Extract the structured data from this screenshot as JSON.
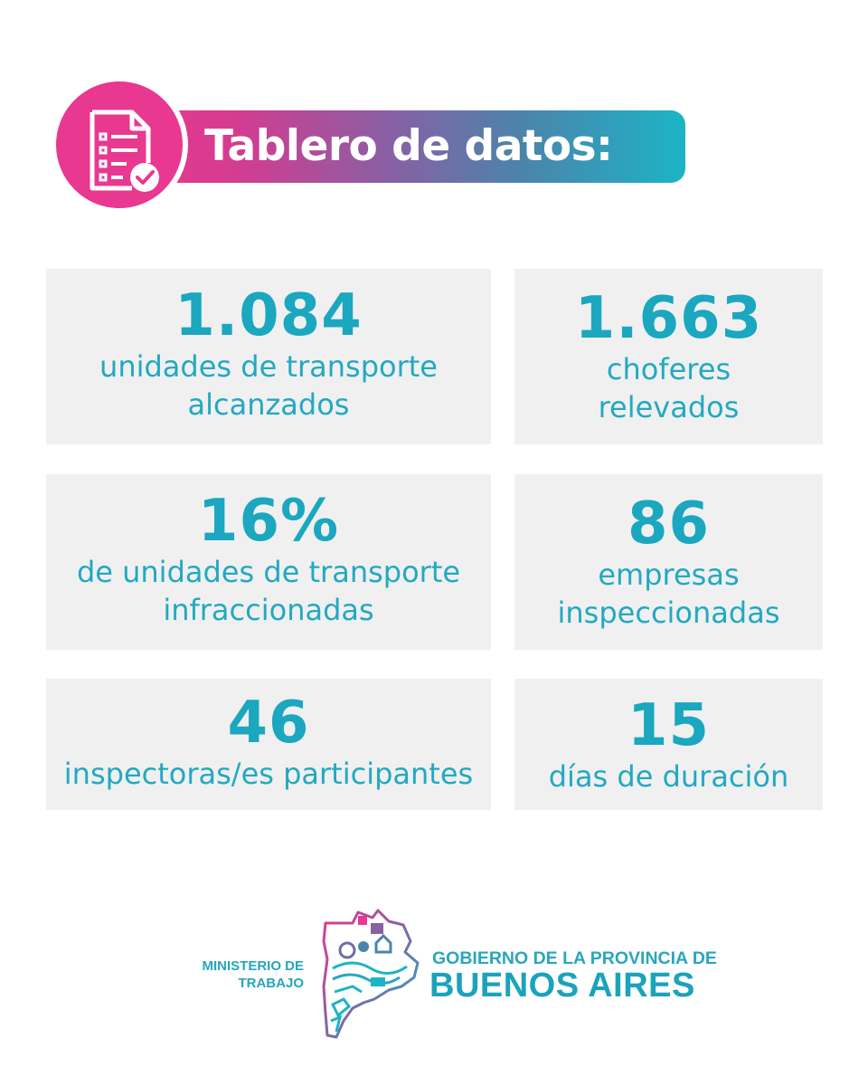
{
  "header": {
    "title": "Tablero de datos:",
    "icon": "document-check-icon",
    "colors": {
      "pink": "#e8388f",
      "teal": "#1cb4c6"
    }
  },
  "stats": [
    {
      "value": "1.084",
      "line1": "unidades de transporte",
      "line2": "alcanzados"
    },
    {
      "value": "1.663",
      "line1": "choferes",
      "line2": "relevados"
    },
    {
      "value": "16%",
      "line1": "de unidades de transporte",
      "line2": "infraccionadas"
    },
    {
      "value": "86",
      "line1": "empresas",
      "line2": "inspeccionadas"
    },
    {
      "value": "46",
      "line1": "inspectoras/es participantes"
    },
    {
      "value": "15",
      "line1": "días de duración"
    }
  ],
  "footer": {
    "ministerio_line1": "MINISTERIO DE",
    "ministerio_line2": "TRABAJO",
    "gobierno_line1": "GOBIERNO DE LA PROVINCIA DE",
    "gobierno_line2": "BUENOS AIRES",
    "logo": "province-map-logo"
  }
}
